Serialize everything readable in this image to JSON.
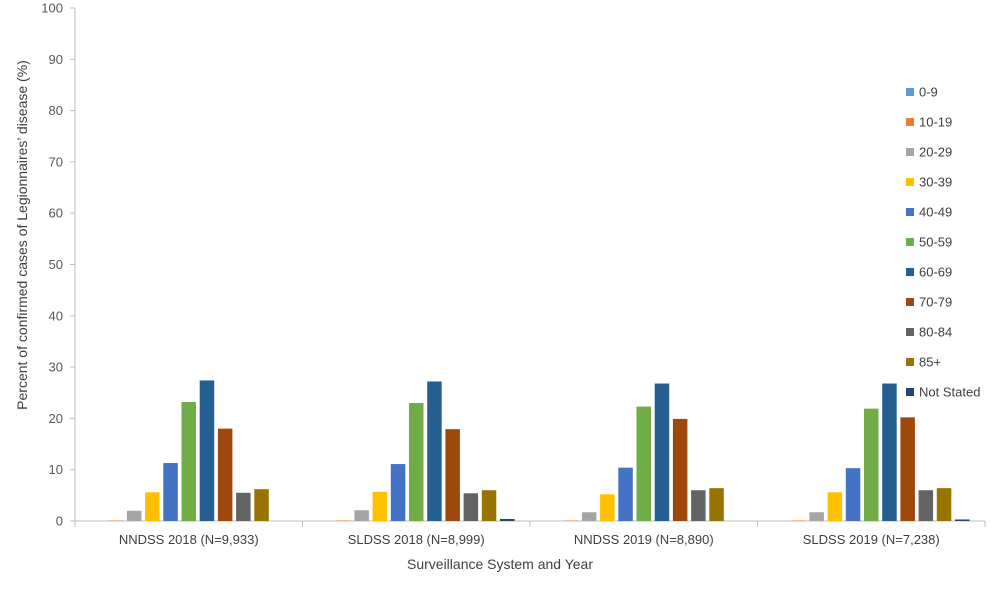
{
  "chart_data": {
    "type": "bar",
    "title": "",
    "xlabel": "Surveillance System and Year",
    "ylabel": "Percent of confirmed cases of Legionnaires’ disease (%)",
    "ylim": [
      0,
      100
    ],
    "yticks": [
      0,
      10,
      20,
      30,
      40,
      50,
      60,
      70,
      80,
      90,
      100
    ],
    "grid": false,
    "legend_position": "right",
    "categories": [
      "NNDSS 2018 (N=9,933)",
      "SLDSS 2018 (N=8,999)",
      "NNDSS 2019 (N=8,890)",
      "SLDSS 2019 (N=7,238)"
    ],
    "series": [
      {
        "name": "0-9",
        "color": "#5B9BD5",
        "values": [
          0.0,
          0.0,
          0.0,
          0.0
        ]
      },
      {
        "name": "10-19",
        "color": "#ED7D31",
        "values": [
          0.1,
          0.1,
          0.1,
          0.1
        ]
      },
      {
        "name": "20-29",
        "color": "#A5A5A5",
        "values": [
          2.0,
          2.1,
          1.7,
          1.7
        ]
      },
      {
        "name": "30-39",
        "color": "#FFC000",
        "values": [
          5.6,
          5.7,
          5.2,
          5.6
        ]
      },
      {
        "name": "40-49",
        "color": "#4472C4",
        "values": [
          11.3,
          11.1,
          10.4,
          10.3
        ]
      },
      {
        "name": "50-59",
        "color": "#70AD47",
        "values": [
          23.2,
          23.0,
          22.3,
          21.9
        ]
      },
      {
        "name": "60-69",
        "color": "#255E91",
        "values": [
          27.4,
          27.2,
          26.8,
          26.8
        ]
      },
      {
        "name": "70-79",
        "color": "#9E480E",
        "values": [
          18.0,
          17.9,
          19.9,
          20.2
        ]
      },
      {
        "name": "80-84",
        "color": "#636363",
        "values": [
          5.5,
          5.4,
          6.0,
          6.0
        ]
      },
      {
        "name": "85+",
        "color": "#997300",
        "values": [
          6.2,
          6.0,
          6.4,
          6.4
        ]
      },
      {
        "name": "Not Stated",
        "color": "#264478",
        "values": [
          0.0,
          0.4,
          0.0,
          0.3
        ]
      }
    ]
  }
}
